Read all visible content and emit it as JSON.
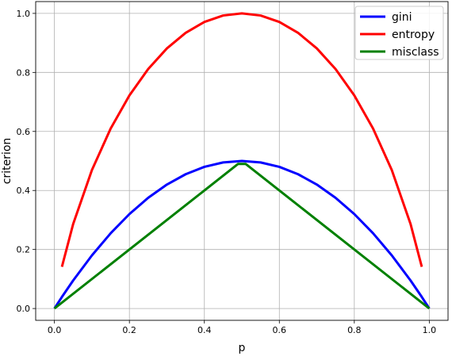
{
  "chart_data": {
    "type": "line",
    "xlabel": "p",
    "ylabel": "criterion",
    "xlim": [
      -0.05,
      1.05
    ],
    "ylim": [
      -0.04,
      1.04
    ],
    "x_ticks": [
      "0.0",
      "0.2",
      "0.4",
      "0.6",
      "0.8",
      "1.0"
    ],
    "y_ticks": [
      "0.0",
      "0.2",
      "0.4",
      "0.6",
      "0.8",
      "1.0"
    ],
    "grid": true,
    "legend_position": "top-right",
    "series": [
      {
        "name": "gini",
        "color": "#0000ff",
        "points": [
          [
            0.0,
            0.0
          ],
          [
            0.02,
            0.0392
          ],
          [
            0.05,
            0.095
          ],
          [
            0.1,
            0.18
          ],
          [
            0.15,
            0.255
          ],
          [
            0.2,
            0.32
          ],
          [
            0.25,
            0.375
          ],
          [
            0.3,
            0.42
          ],
          [
            0.35,
            0.455
          ],
          [
            0.4,
            0.48
          ],
          [
            0.45,
            0.495
          ],
          [
            0.5,
            0.5
          ],
          [
            0.55,
            0.495
          ],
          [
            0.6,
            0.48
          ],
          [
            0.65,
            0.455
          ],
          [
            0.7,
            0.42
          ],
          [
            0.75,
            0.375
          ],
          [
            0.8,
            0.32
          ],
          [
            0.85,
            0.255
          ],
          [
            0.9,
            0.18
          ],
          [
            0.95,
            0.095
          ],
          [
            0.98,
            0.0392
          ],
          [
            1.0,
            0.0
          ]
        ]
      },
      {
        "name": "entropy",
        "color": "#ff0000",
        "points": [
          [
            0.02,
            0.1414
          ],
          [
            0.05,
            0.2864
          ],
          [
            0.1,
            0.469
          ],
          [
            0.15,
            0.6098
          ],
          [
            0.2,
            0.7219
          ],
          [
            0.25,
            0.8113
          ],
          [
            0.3,
            0.8813
          ],
          [
            0.35,
            0.9341
          ],
          [
            0.4,
            0.971
          ],
          [
            0.45,
            0.9928
          ],
          [
            0.5,
            1.0
          ],
          [
            0.55,
            0.9928
          ],
          [
            0.6,
            0.971
          ],
          [
            0.65,
            0.9341
          ],
          [
            0.7,
            0.8813
          ],
          [
            0.75,
            0.8113
          ],
          [
            0.8,
            0.7219
          ],
          [
            0.85,
            0.6098
          ],
          [
            0.9,
            0.469
          ],
          [
            0.95,
            0.2864
          ],
          [
            0.98,
            0.1414
          ]
        ]
      },
      {
        "name": "misclass",
        "color": "#008000",
        "points": [
          [
            0.0,
            0.0
          ],
          [
            0.49,
            0.49
          ],
          [
            0.51,
            0.49
          ],
          [
            1.0,
            0.0
          ]
        ]
      }
    ]
  }
}
